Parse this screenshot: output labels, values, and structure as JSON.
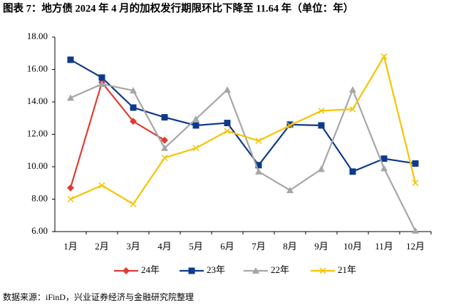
{
  "chart_data": {
    "type": "line",
    "title": "图表 7：地方债 2024 年 4 月的加权发行期限环比下降至 11.64 年（单位：年）",
    "source": "数据来源：iFinD，兴业证券经济与金融研究院整理",
    "categories": [
      "1月",
      "2月",
      "3月",
      "4月",
      "5月",
      "6月",
      "7月",
      "8月",
      "9月",
      "10月",
      "11月",
      "12月"
    ],
    "ylim": [
      6,
      18
    ],
    "yticks": [
      {
        "value": 6,
        "label": "6.00"
      },
      {
        "value": 8,
        "label": "8.00"
      },
      {
        "value": 10,
        "label": "10.00"
      },
      {
        "value": 12,
        "label": "12.00"
      },
      {
        "value": 14,
        "label": "14.00"
      },
      {
        "value": 16,
        "label": "16.00"
      },
      {
        "value": 18,
        "label": "18.00"
      }
    ],
    "grid": false,
    "legend": "bottom",
    "series": [
      {
        "name": "24年",
        "color": "#e03c31",
        "marker": "diamond",
        "values": [
          8.7,
          15.2,
          12.8,
          11.64,
          null,
          null,
          null,
          null,
          null,
          null,
          null,
          null
        ]
      },
      {
        "name": "23年",
        "color": "#0d3a8c",
        "marker": "square",
        "values": [
          16.6,
          15.5,
          13.65,
          13.05,
          12.55,
          12.7,
          10.1,
          12.6,
          12.55,
          9.7,
          10.5,
          10.2
        ]
      },
      {
        "name": "22年",
        "color": "#a6a6a6",
        "marker": "triangle",
        "values": [
          14.25,
          15.1,
          14.7,
          11.15,
          12.95,
          14.75,
          9.7,
          8.55,
          9.85,
          14.75,
          9.9,
          6.05
        ]
      },
      {
        "name": "21年",
        "color": "#f5c400",
        "marker": "cross",
        "values": [
          8.0,
          8.85,
          7.7,
          10.55,
          11.15,
          12.2,
          11.6,
          12.55,
          13.45,
          13.55,
          16.8,
          9.0
        ]
      }
    ]
  }
}
